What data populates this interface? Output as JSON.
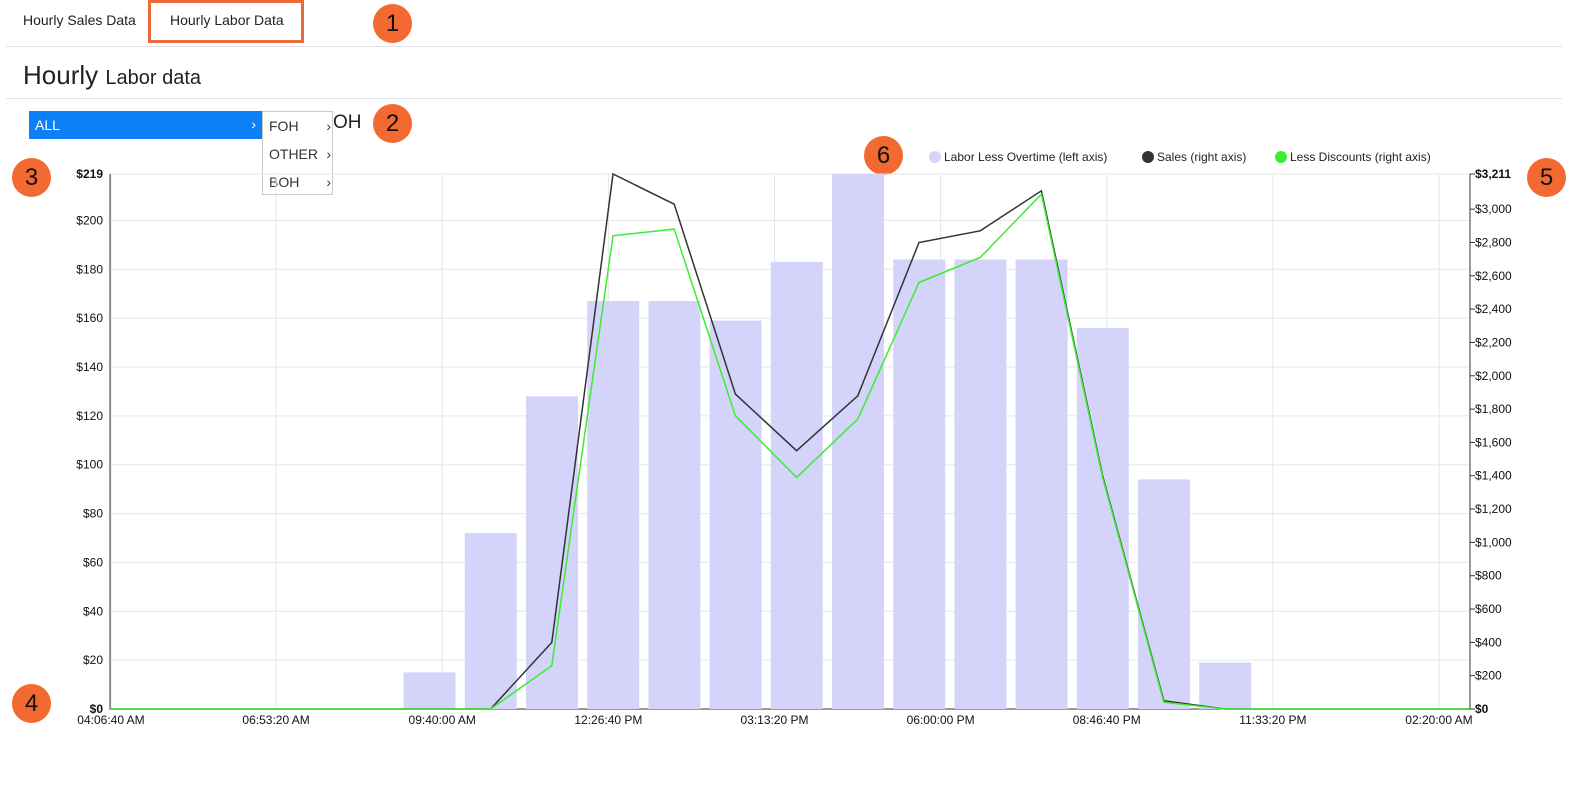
{
  "tabs": [
    {
      "label": "Hourly Sales Data"
    },
    {
      "label": "Hourly Labor Data"
    }
  ],
  "page_title": {
    "main": "Hourly",
    "sub": "Labor data"
  },
  "menu": {
    "selected": "ALL",
    "items": [
      "FOH",
      "OTHER",
      "BOH"
    ],
    "trailing_text": "OH"
  },
  "badges": [
    "1",
    "2",
    "3",
    "4",
    "5",
    "6"
  ],
  "legend": [
    {
      "label": "Labor Less Overtime (left axis)",
      "color": "#d4d4fb"
    },
    {
      "label": "Sales (right axis)",
      "color": "#333333"
    },
    {
      "label": "Less Discounts (right axis)",
      "color": "#3aee2e"
    }
  ],
  "chart_data": {
    "type": "bar",
    "x_ticks": [
      "04:06:40 AM",
      "06:53:20 AM",
      "09:40:00 AM",
      "12:26:40 PM",
      "03:13:20 PM",
      "06:00:00 PM",
      "08:46:40 PM",
      "11:33:20 PM",
      "02:20:00 AM"
    ],
    "left_axis": {
      "ticks": [
        "$0",
        "$20",
        "$40",
        "$60",
        "$80",
        "$100",
        "$120",
        "$140",
        "$160",
        "$180",
        "$200",
        "$219"
      ],
      "ylim": [
        0,
        219
      ]
    },
    "right_axis": {
      "ticks": [
        "$0",
        "$200",
        "$400",
        "$600",
        "$800",
        "$1,000",
        "$1,200",
        "$1,400",
        "$1,600",
        "$1,800",
        "$2,000",
        "$2,200",
        "$2,400",
        "$2,600",
        "$2,800",
        "$3,000",
        "$3,211"
      ],
      "ylim": [
        0,
        3211
      ]
    },
    "bar_hours": [
      9,
      10,
      11,
      12,
      13,
      14,
      15,
      16,
      17,
      18,
      19,
      20,
      21,
      22,
      23
    ],
    "series": [
      {
        "name": "Labor Less Overtime (left axis)",
        "axis": "left",
        "type": "bar",
        "values": [
          15,
          72,
          128,
          167,
          167,
          159,
          183,
          219,
          184,
          184,
          184,
          156,
          94,
          19,
          0
        ]
      },
      {
        "name": "Sales (right axis)",
        "axis": "right",
        "type": "line",
        "x_hours": [
          4.1,
          10.33,
          11.33,
          12.33,
          13.33,
          14.33,
          15.33,
          16.33,
          17.33,
          18.33,
          19.33,
          20.33,
          21.33,
          22.33,
          26.33
        ],
        "values": [
          0,
          0,
          400,
          3211,
          3030,
          1890,
          1550,
          1880,
          2800,
          2870,
          3110,
          1400,
          50,
          0,
          0
        ]
      },
      {
        "name": "Less Discounts (right axis)",
        "axis": "right",
        "type": "line",
        "x_hours": [
          4.1,
          10.33,
          11.33,
          12.33,
          13.33,
          14.33,
          15.33,
          16.33,
          17.33,
          18.33,
          19.33,
          20.33,
          21.33,
          22.33,
          26.33
        ],
        "values": [
          0,
          0,
          260,
          2840,
          2880,
          1760,
          1390,
          1740,
          2560,
          2710,
          3090,
          1390,
          40,
          0,
          0
        ]
      }
    ]
  }
}
